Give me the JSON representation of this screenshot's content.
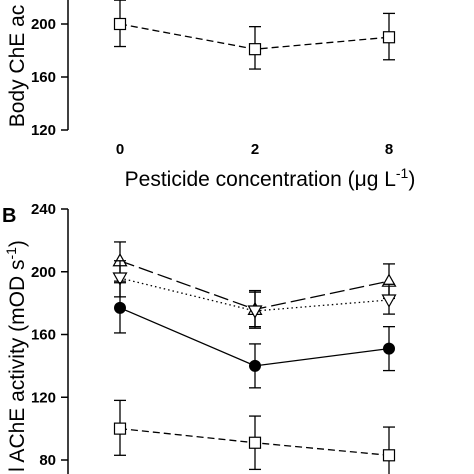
{
  "chart_data": [
    {
      "type": "line",
      "panel_label": "",
      "title": "",
      "xlabel_main": "Pesticide concentration (μg L",
      "xlabel_sup": "-1",
      "xlabel_close": ")",
      "ylabel": "Body ChE ac",
      "categories": [
        "0",
        "2",
        "8"
      ],
      "ylim": [
        120,
        220
      ],
      "yticks": [
        120,
        160,
        200
      ],
      "series": [
        {
          "line": "dashed",
          "marker": "open-square",
          "values": [
            200,
            181,
            190
          ],
          "err_low": [
            183,
            166,
            173
          ],
          "err_high": [
            218,
            198,
            208
          ]
        }
      ]
    },
    {
      "type": "line",
      "panel_label": "B",
      "title": "",
      "xlabel": "",
      "ylabel_main": "l AChE activity (mOD s",
      "ylabel_sup": "-1",
      "ylabel_close": ")",
      "categories": [
        "0",
        "2",
        "8"
      ],
      "ylim": [
        75,
        240
      ],
      "yticks": [
        80,
        120,
        160,
        200,
        240
      ],
      "series": [
        {
          "line": "long-dash",
          "marker": "open-triangle-up",
          "values": [
            207,
            176,
            194
          ],
          "err_low": [
            194,
            165,
            183
          ],
          "err_high": [
            219,
            187,
            205
          ]
        },
        {
          "line": "dotted",
          "marker": "open-triangle-down",
          "values": [
            196,
            175,
            182
          ],
          "err_low": [
            184,
            164,
            173
          ],
          "err_high": [
            207,
            188,
            192
          ]
        },
        {
          "line": "solid",
          "marker": "filled-circle",
          "values": [
            177,
            140,
            151
          ],
          "err_low": [
            161,
            126,
            137
          ],
          "err_high": [
            193,
            154,
            165
          ]
        },
        {
          "line": "dashed",
          "marker": "open-square",
          "values": [
            100,
            91,
            83
          ],
          "err_low": [
            83,
            74,
            65
          ],
          "err_high": [
            118,
            108,
            101
          ]
        }
      ]
    }
  ]
}
